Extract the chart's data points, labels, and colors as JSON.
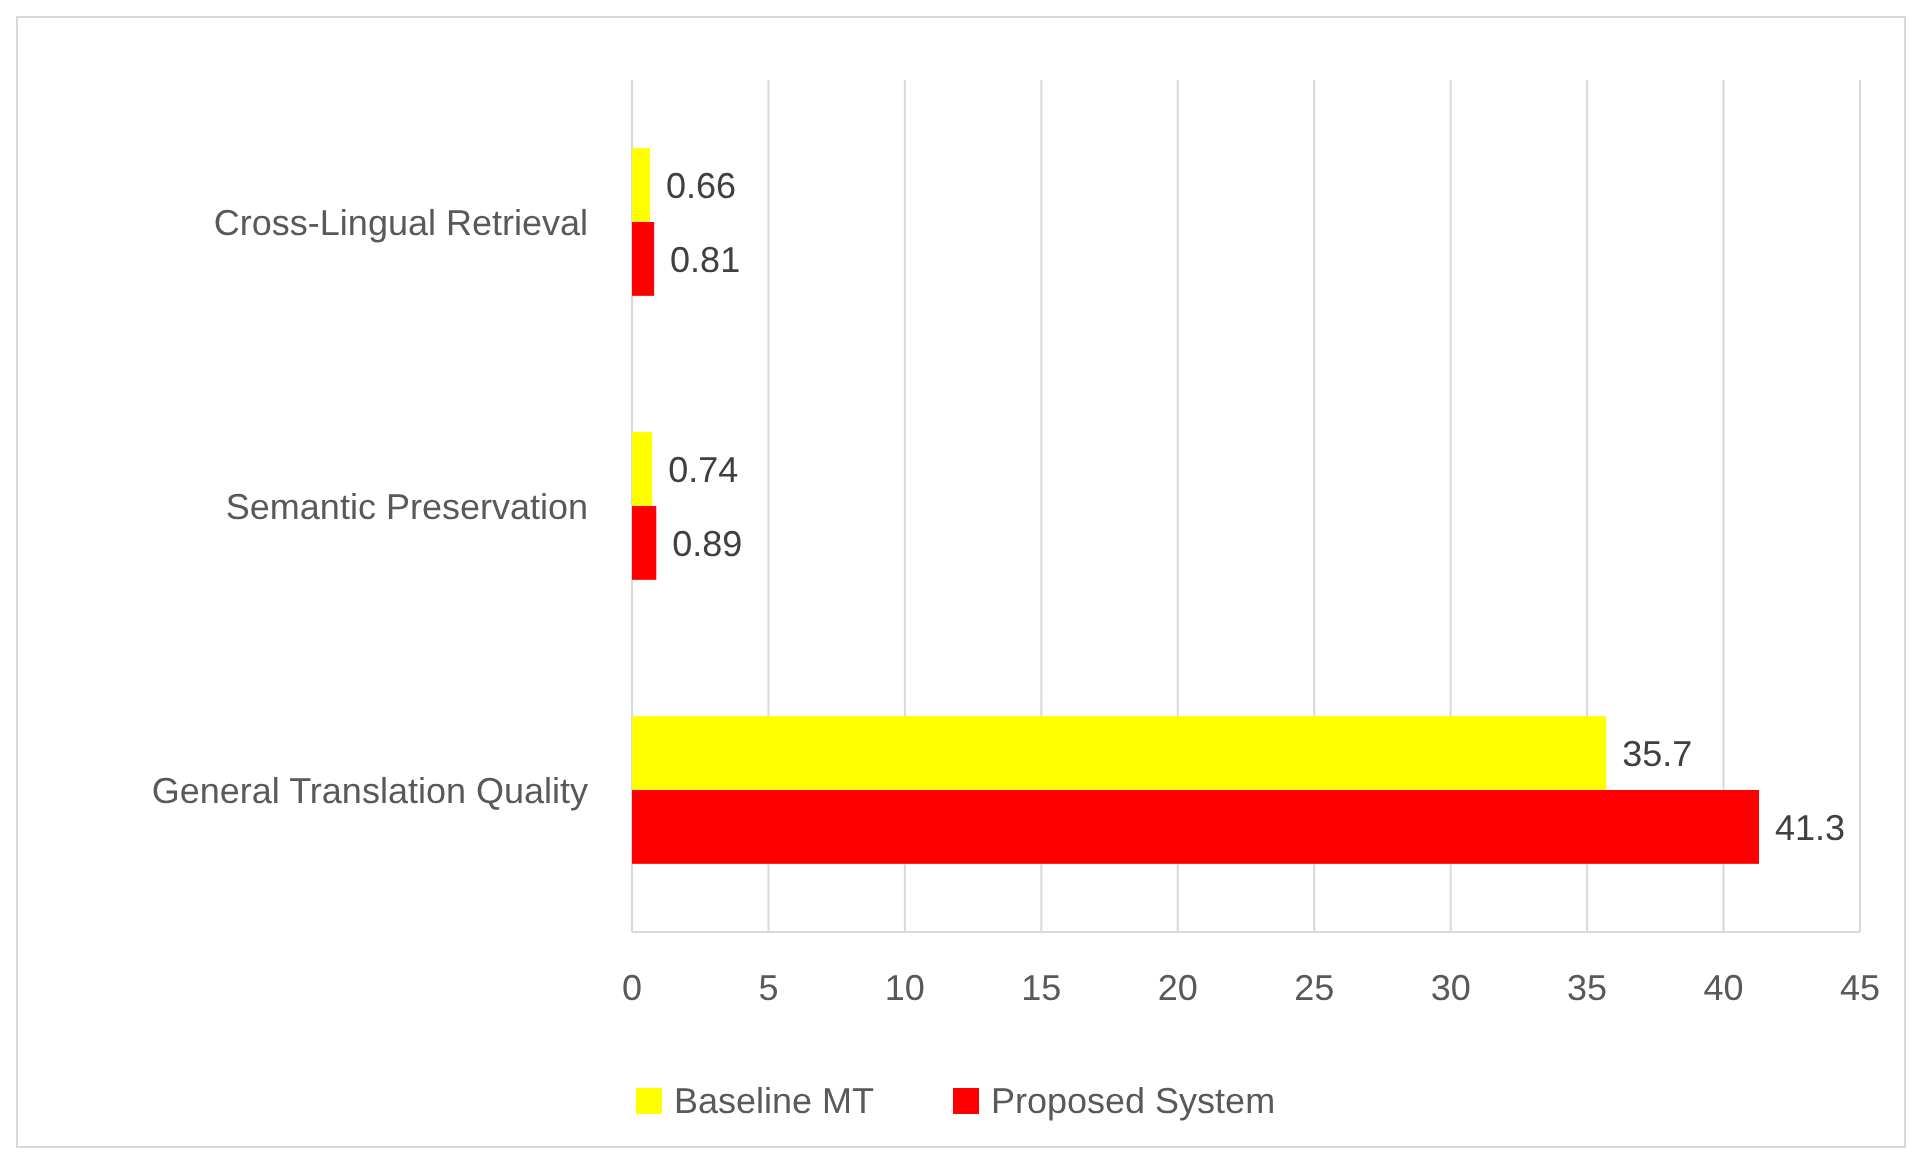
{
  "chart_data": {
    "type": "bar",
    "orientation": "horizontal",
    "categories": [
      "Cross-Lingual Retrieval",
      "Semantic Preservation",
      "General Translation Quality"
    ],
    "series": [
      {
        "name": "Baseline MT",
        "color": "#ffff00",
        "values": [
          0.66,
          0.74,
          35.7
        ]
      },
      {
        "name": "Proposed System",
        "color": "#ff0000",
        "values": [
          0.81,
          0.89,
          41.3
        ]
      }
    ],
    "xlim": [
      0,
      45
    ],
    "xticks": [
      0,
      5,
      10,
      15,
      20,
      25,
      30,
      35,
      40,
      45
    ],
    "grid": "x",
    "legend": "bottom",
    "data_labels": true
  }
}
